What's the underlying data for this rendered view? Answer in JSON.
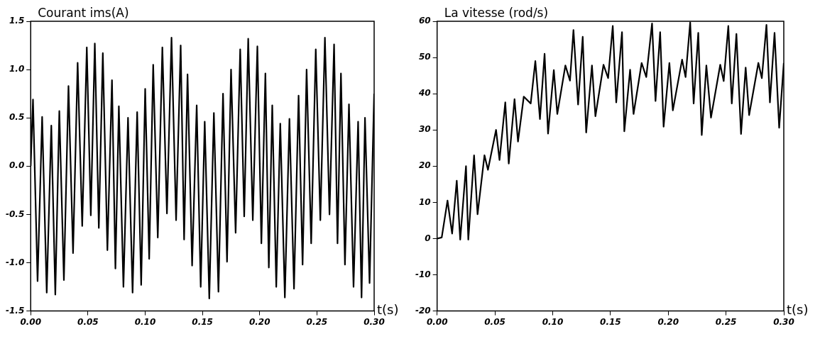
{
  "chart_data": [
    {
      "type": "line",
      "title": "Courant ims(A)",
      "xlabel": "t(s)",
      "grid": false,
      "legend": false,
      "marker": "none",
      "line_style": "solid",
      "xlim": [
        0,
        0.3
      ],
      "xticks": [
        {
          "value": 0,
          "label": "0.00"
        },
        {
          "value": 0.05,
          "label": "0.05"
        },
        {
          "value": 0.1,
          "label": "0.10"
        },
        {
          "value": 0.15,
          "label": "0.15"
        },
        {
          "value": 0.2,
          "label": "0.20"
        },
        {
          "value": 0.25,
          "label": "0.25"
        },
        {
          "value": 0.3,
          "label": "0.30"
        }
      ],
      "ylim": [
        -1.5,
        1.5
      ],
      "yticks": [
        {
          "value": -1.5,
          "label": "-1.5"
        },
        {
          "value": -1,
          "label": "-1.0"
        },
        {
          "value": -0.5,
          "label": "-0.5"
        },
        {
          "value": 0,
          "label": "0.0"
        },
        {
          "value": 0.5,
          "label": "0.5"
        },
        {
          "value": 1,
          "label": "1.0"
        },
        {
          "value": 1.5,
          "label": "1.5"
        }
      ],
      "series": [
        {
          "color": "#000000",
          "x": [
            0,
            0.002,
            0.006,
            0.01,
            0.014,
            0.018,
            0.0215,
            0.025,
            0.029,
            0.033,
            0.037,
            0.041,
            0.045,
            0.049,
            0.0525,
            0.056,
            0.0595,
            0.063,
            0.067,
            0.071,
            0.074,
            0.077,
            0.081,
            0.085,
            0.089,
            0.093,
            0.0965,
            0.1,
            0.1035,
            0.107,
            0.111,
            0.115,
            0.119,
            0.123,
            0.127,
            0.131,
            0.134,
            0.137,
            0.141,
            0.145,
            0.1485,
            0.152,
            0.156,
            0.16,
            0.164,
            0.168,
            0.1715,
            0.175,
            0.179,
            0.183,
            0.1865,
            0.19,
            0.194,
            0.198,
            0.2015,
            0.205,
            0.208,
            0.211,
            0.2145,
            0.218,
            0.222,
            0.226,
            0.23,
            0.234,
            0.2375,
            0.241,
            0.245,
            0.249,
            0.253,
            0.257,
            0.261,
            0.265,
            0.268,
            0.271,
            0.2745,
            0.278,
            0.282,
            0.286,
            0.289,
            0.292,
            0.296,
            0.3
          ],
          "values": [
            0,
            0.69,
            -1.19,
            0.51,
            -1.31,
            0.42,
            -1.33,
            0.57,
            -1.18,
            0.83,
            -0.9,
            1.07,
            -0.62,
            1.23,
            -0.51,
            1.27,
            -0.64,
            1.17,
            -0.87,
            0.89,
            -1.06,
            0.62,
            -1.25,
            0.5,
            -1.31,
            0.56,
            -1.23,
            0.8,
            -0.96,
            1.05,
            -0.74,
            1.23,
            -0.49,
            1.33,
            -0.56,
            1.25,
            -0.76,
            0.95,
            -1.03,
            0.63,
            -1.25,
            0.46,
            -1.37,
            0.55,
            -1.3,
            0.75,
            -0.99,
            1.0,
            -0.69,
            1.21,
            -0.52,
            1.32,
            -0.56,
            1.24,
            -0.8,
            0.96,
            -1.05,
            0.63,
            -1.25,
            0.44,
            -1.36,
            0.49,
            -1.27,
            0.73,
            -1.02,
            1.0,
            -0.8,
            1.21,
            -0.56,
            1.33,
            -0.5,
            1.26,
            -0.8,
            0.96,
            -1.02,
            0.64,
            -1.25,
            0.46,
            -1.36,
            0.5,
            -1.21,
            0.75
          ]
        }
      ]
    },
    {
      "type": "line",
      "title": "La vitesse (rod/s)",
      "xlabel": "t(s)",
      "grid": false,
      "legend": false,
      "marker": "none",
      "line_style": "solid",
      "xlim": [
        0,
        0.3
      ],
      "xticks": [
        {
          "value": 0,
          "label": "0.00"
        },
        {
          "value": 0.05,
          "label": "0.05"
        },
        {
          "value": 0.1,
          "label": "0.10"
        },
        {
          "value": 0.15,
          "label": "0.15"
        },
        {
          "value": 0.2,
          "label": "0.20"
        },
        {
          "value": 0.25,
          "label": "0.25"
        },
        {
          "value": 0.3,
          "label": "0.30"
        }
      ],
      "ylim": [
        -20,
        60
      ],
      "yticks": [
        -20,
        -10,
        0,
        10,
        20,
        30,
        40,
        50,
        60
      ],
      "series": [
        {
          "color": "#000000",
          "x": [
            0,
            0.004,
            0.009,
            0.013,
            0.017,
            0.02,
            0.025,
            0.027,
            0.032,
            0.035,
            0.041,
            0.044,
            0.051,
            0.054,
            0.059,
            0.062,
            0.067,
            0.07,
            0.075,
            0.081,
            0.085,
            0.089,
            0.093,
            0.096,
            0.101,
            0.104,
            0.111,
            0.115,
            0.118,
            0.122,
            0.126,
            0.129,
            0.134,
            0.137,
            0.144,
            0.148,
            0.152,
            0.155,
            0.16,
            0.162,
            0.167,
            0.17,
            0.177,
            0.181,
            0.186,
            0.189,
            0.193,
            0.196,
            0.201,
            0.204,
            0.212,
            0.215,
            0.219,
            0.222,
            0.226,
            0.229,
            0.233,
            0.237,
            0.245,
            0.248,
            0.252,
            0.255,
            0.259,
            0.263,
            0.267,
            0.27,
            0.278,
            0.281,
            0.285,
            0.288,
            0.292,
            0.296,
            0.3
          ],
          "values": [
            0,
            0.3,
            10.5,
            1.4,
            16,
            -0.3,
            20,
            -0.3,
            23,
            6.7,
            23,
            19,
            30,
            21.7,
            37.6,
            20.7,
            38.5,
            26.8,
            39.2,
            37.3,
            49,
            33,
            51,
            29,
            46.5,
            34.4,
            47.8,
            43.6,
            57.6,
            37,
            55.7,
            29.3,
            47.8,
            33.8,
            48,
            44.3,
            58.7,
            37.6,
            57,
            29.6,
            46.6,
            34.4,
            48.5,
            44.6,
            59.4,
            38,
            57,
            30.9,
            48.5,
            35.4,
            49.4,
            44.6,
            59.7,
            37.3,
            56.8,
            28.6,
            47.8,
            33.4,
            48,
            43.5,
            58.7,
            37.3,
            56.5,
            28.9,
            47.2,
            34.1,
            48.5,
            44.3,
            59,
            37.6,
            56.8,
            30.6,
            48.5
          ]
        }
      ]
    }
  ]
}
